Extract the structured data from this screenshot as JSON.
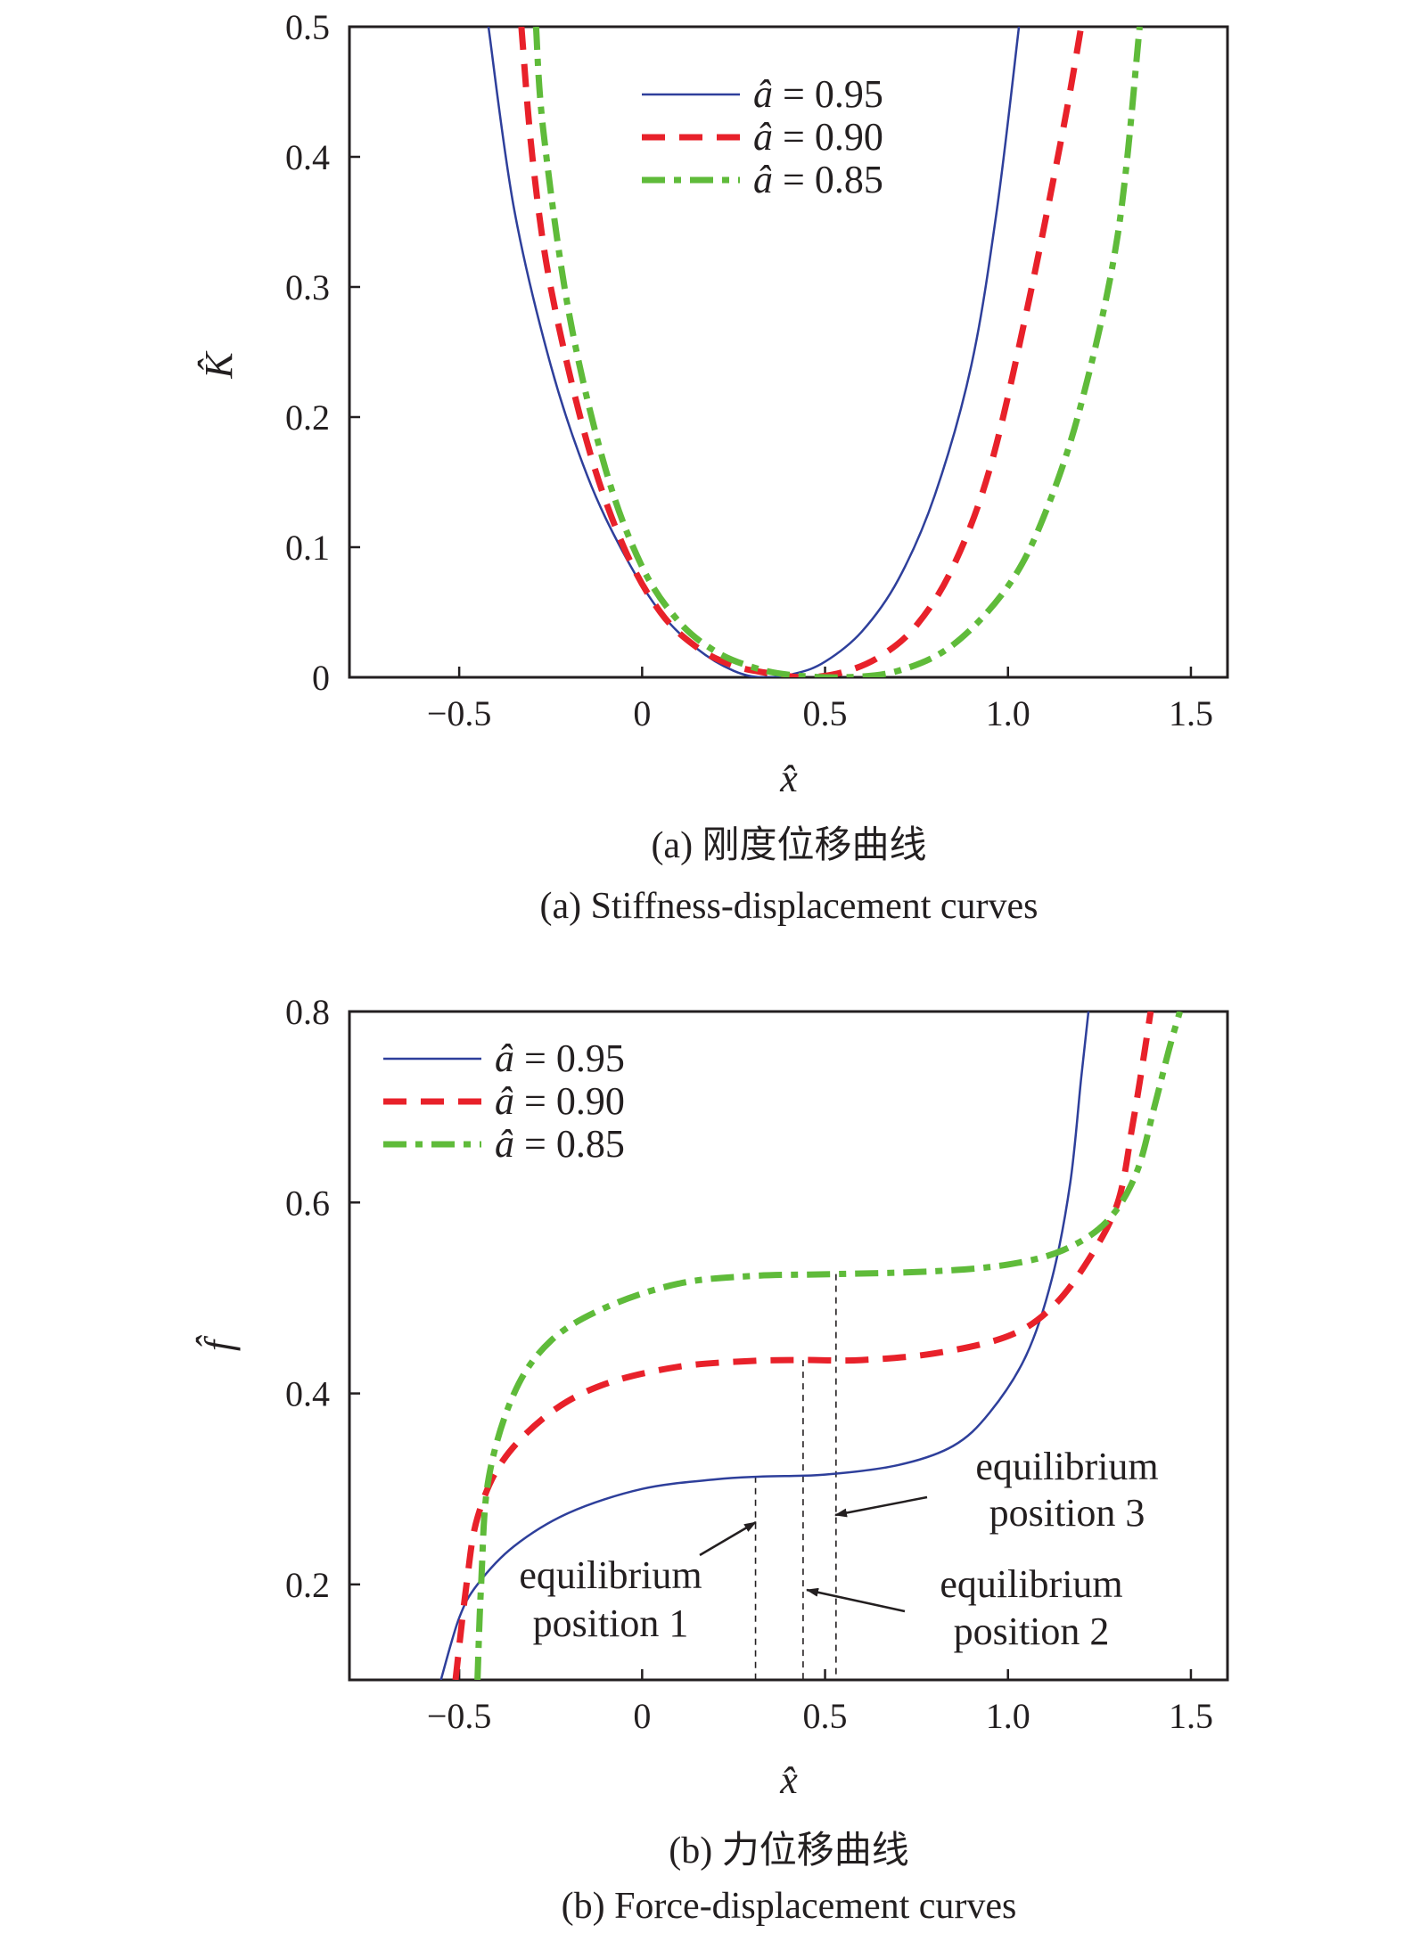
{
  "chart_data": [
    {
      "type": "line",
      "caption_cn": "(a) 刚度位移曲线",
      "caption_en": "(a) Stiffness-displacement curves",
      "xlabel": "x̂",
      "ylabel": "K̂",
      "xlim": [
        -0.8,
        1.6
      ],
      "ylim": [
        0,
        0.5
      ],
      "xticks": [
        -0.5,
        0,
        0.5,
        1.0,
        1.5
      ],
      "xtick_labels": [
        "−0.5",
        "0",
        "0.5",
        "1.0",
        "1.5"
      ],
      "yticks": [
        0,
        0.1,
        0.2,
        0.3,
        0.4,
        0.5
      ],
      "ytick_labels": [
        "0",
        "0.1",
        "0.2",
        "0.3",
        "0.4",
        "0.5"
      ],
      "legend_position": "top-center",
      "series": [
        {
          "name": "â = 0.95",
          "label_var": "â",
          "label_val": "= 0.95",
          "color": "#2e3f9b",
          "style": "solid",
          "points": [
            [
              -0.42,
              0.5
            ],
            [
              -0.35,
              0.36
            ],
            [
              -0.25,
              0.24
            ],
            [
              -0.15,
              0.155
            ],
            [
              -0.05,
              0.095
            ],
            [
              0.05,
              0.05
            ],
            [
              0.15,
              0.022
            ],
            [
              0.25,
              0.005
            ],
            [
              0.33,
              0.0
            ],
            [
              0.42,
              0.003
            ],
            [
              0.5,
              0.012
            ],
            [
              0.6,
              0.035
            ],
            [
              0.7,
              0.075
            ],
            [
              0.8,
              0.14
            ],
            [
              0.9,
              0.24
            ],
            [
              0.97,
              0.36
            ],
            [
              1.03,
              0.5
            ]
          ]
        },
        {
          "name": "â = 0.90",
          "label_var": "â",
          "label_val": "= 0.90",
          "color": "#e8212a",
          "style": "dash",
          "points": [
            [
              -0.33,
              0.5
            ],
            [
              -0.3,
              0.4
            ],
            [
              -0.25,
              0.3
            ],
            [
              -0.15,
              0.18
            ],
            [
              -0.05,
              0.1
            ],
            [
              0.05,
              0.05
            ],
            [
              0.15,
              0.023
            ],
            [
              0.25,
              0.009
            ],
            [
              0.35,
              0.003
            ],
            [
              0.45,
              0.0
            ],
            [
              0.55,
              0.004
            ],
            [
              0.65,
              0.016
            ],
            [
              0.75,
              0.04
            ],
            [
              0.85,
              0.085
            ],
            [
              0.95,
              0.16
            ],
            [
              1.05,
              0.28
            ],
            [
              1.15,
              0.42
            ],
            [
              1.2,
              0.5
            ]
          ]
        },
        {
          "name": "â = 0.85",
          "label_var": "â",
          "label_val": "= 0.85",
          "color": "#5fbb3a",
          "style": "dashdot",
          "points": [
            [
              -0.29,
              0.5
            ],
            [
              -0.27,
              0.42
            ],
            [
              -0.2,
              0.28
            ],
            [
              -0.1,
              0.16
            ],
            [
              0.0,
              0.085
            ],
            [
              0.1,
              0.043
            ],
            [
              0.2,
              0.02
            ],
            [
              0.3,
              0.008
            ],
            [
              0.4,
              0.002
            ],
            [
              0.55,
              0.0
            ],
            [
              0.7,
              0.005
            ],
            [
              0.85,
              0.025
            ],
            [
              1.0,
              0.07
            ],
            [
              1.1,
              0.125
            ],
            [
              1.2,
              0.21
            ],
            [
              1.3,
              0.34
            ],
            [
              1.36,
              0.5
            ]
          ]
        }
      ]
    },
    {
      "type": "line",
      "caption_cn": "(b) 力位移曲线",
      "caption_en": "(b) Force-displacement curves",
      "xlabel": "x̂",
      "ylabel": "f̂",
      "xlim": [
        -0.8,
        1.6
      ],
      "ylim": [
        0.1,
        0.8
      ],
      "xticks": [
        -0.5,
        0,
        0.5,
        1.0,
        1.5
      ],
      "xtick_labels": [
        "−0.5",
        "0",
        "0.5",
        "1.0",
        "1.5"
      ],
      "yticks": [
        0.2,
        0.4,
        0.6,
        0.8
      ],
      "ytick_labels": [
        "0.2",
        "0.4",
        "0.6",
        "0.8"
      ],
      "legend_position": "top-left",
      "series": [
        {
          "name": "â = 0.95",
          "label_var": "â",
          "label_val": "= 0.95",
          "color": "#2e3f9b",
          "style": "solid",
          "points": [
            [
              -0.55,
              0.1
            ],
            [
              -0.5,
              0.165
            ],
            [
              -0.45,
              0.2
            ],
            [
              -0.35,
              0.24
            ],
            [
              -0.2,
              0.275
            ],
            [
              0.0,
              0.3
            ],
            [
              0.2,
              0.31
            ],
            [
              0.33,
              0.313
            ],
            [
              0.5,
              0.315
            ],
            [
              0.7,
              0.325
            ],
            [
              0.85,
              0.345
            ],
            [
              0.95,
              0.38
            ],
            [
              1.05,
              0.44
            ],
            [
              1.12,
              0.52
            ],
            [
              1.17,
              0.62
            ],
            [
              1.2,
              0.73
            ],
            [
              1.22,
              0.8
            ]
          ]
        },
        {
          "name": "â = 0.90",
          "label_var": "â",
          "label_val": "= 0.90",
          "color": "#e8212a",
          "style": "dash",
          "points": [
            [
              -0.51,
              0.1
            ],
            [
              -0.48,
              0.2
            ],
            [
              -0.45,
              0.27
            ],
            [
              -0.38,
              0.33
            ],
            [
              -0.25,
              0.38
            ],
            [
              -0.1,
              0.41
            ],
            [
              0.1,
              0.428
            ],
            [
              0.3,
              0.434
            ],
            [
              0.44,
              0.435
            ],
            [
              0.6,
              0.435
            ],
            [
              0.8,
              0.442
            ],
            [
              1.0,
              0.46
            ],
            [
              1.12,
              0.49
            ],
            [
              1.22,
              0.54
            ],
            [
              1.3,
              0.6
            ],
            [
              1.34,
              0.68
            ],
            [
              1.37,
              0.75
            ],
            [
              1.39,
              0.8
            ]
          ]
        },
        {
          "name": "â = 0.85",
          "label_var": "â",
          "label_val": "= 0.85",
          "color": "#5fbb3a",
          "style": "dashdot",
          "points": [
            [
              -0.45,
              0.1
            ],
            [
              -0.44,
              0.2
            ],
            [
              -0.42,
              0.31
            ],
            [
              -0.35,
              0.4
            ],
            [
              -0.25,
              0.455
            ],
            [
              -0.1,
              0.49
            ],
            [
              0.1,
              0.515
            ],
            [
              0.3,
              0.523
            ],
            [
              0.53,
              0.525
            ],
            [
              0.8,
              0.528
            ],
            [
              1.0,
              0.535
            ],
            [
              1.15,
              0.55
            ],
            [
              1.27,
              0.58
            ],
            [
              1.35,
              0.63
            ],
            [
              1.4,
              0.7
            ],
            [
              1.44,
              0.76
            ],
            [
              1.47,
              0.8
            ]
          ]
        }
      ],
      "equilibrium_lines": [
        {
          "x": 0.31,
          "y_top": 0.313
        },
        {
          "x": 0.44,
          "y_top": 0.435
        },
        {
          "x": 0.53,
          "y_top": 0.525
        }
      ],
      "annotations": [
        {
          "line1": "equilibrium",
          "line2": "position 1"
        },
        {
          "line1": "equilibrium",
          "line2": "position 2"
        },
        {
          "line1": "equilibrium",
          "line2": "position 3"
        }
      ]
    }
  ]
}
